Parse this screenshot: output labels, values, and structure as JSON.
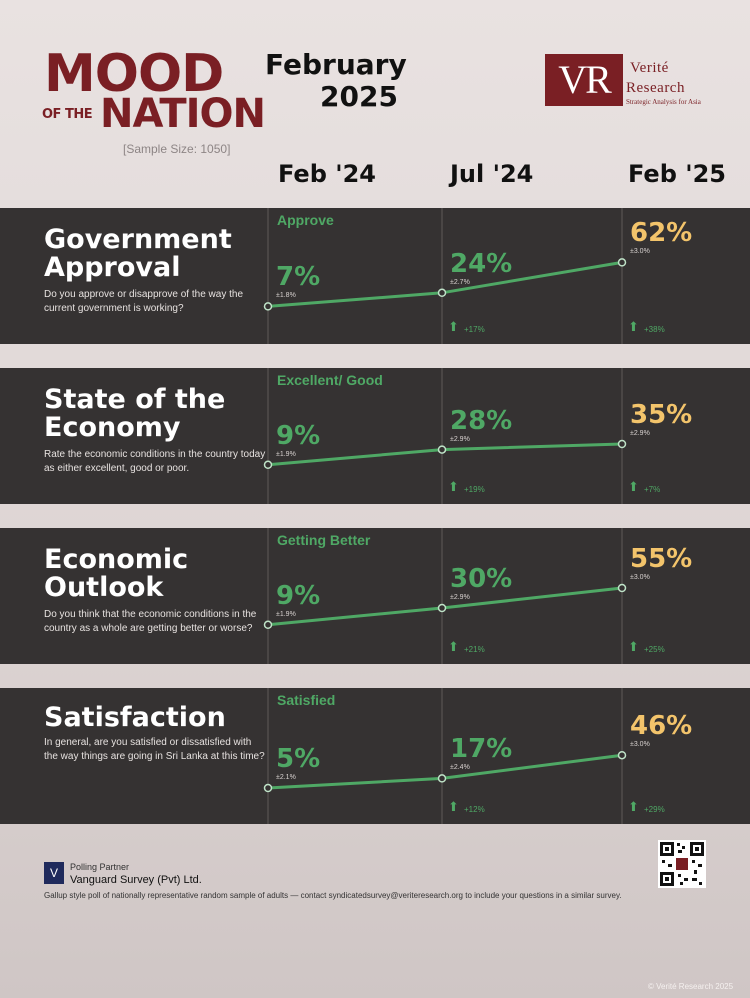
{
  "header": {
    "logo_mood": "MOOD",
    "logo_ofthe": "OF THE",
    "logo_nation": "NATION",
    "sample_size": "[Sample Size: 1050]",
    "month": "February",
    "year": "2025",
    "brand_initials": "VR",
    "brand_name_line1": "Verité",
    "brand_name_line2": "Research",
    "brand_tagline": "Strategic Analysis for Asia"
  },
  "columns": [
    "Feb '24",
    "Jul '24",
    "Feb '25"
  ],
  "colors": {
    "panel_bg": "#353232",
    "green": "#4fa865",
    "highlight": "#f3c46b",
    "brand": "#7a1f24"
  },
  "chart_data": [
    {
      "type": "line",
      "title": "Government Approval",
      "question": "Do you approve or disapprove of the way the current government is working?",
      "response_label": "Approve",
      "x": [
        "Feb '24",
        "Jul '24",
        "Feb '25"
      ],
      "values": [
        7,
        24,
        62
      ],
      "value_labels": [
        "7%",
        "24%",
        "62%"
      ],
      "margins": [
        "±1.8%",
        "±2.7%",
        "±3.0%"
      ],
      "changes": [
        "+17%",
        "+38%"
      ],
      "ylim": [
        0,
        100
      ]
    },
    {
      "type": "line",
      "title": "State of the Economy",
      "question": "Rate the economic conditions in the country today as either excellent, good or poor.",
      "response_label": "Excellent/ Good",
      "x": [
        "Feb '24",
        "Jul '24",
        "Feb '25"
      ],
      "values": [
        9,
        28,
        35
      ],
      "value_labels": [
        "9%",
        "28%",
        "35%"
      ],
      "margins": [
        "±1.9%",
        "±2.9%",
        "±2.9%"
      ],
      "changes": [
        "+19%",
        "+7%"
      ],
      "ylim": [
        0,
        100
      ]
    },
    {
      "type": "line",
      "title": "Economic Outlook",
      "question": "Do you think that the economic conditions in the country as a whole are getting better or worse?",
      "response_label": "Getting Better",
      "x": [
        "Feb '24",
        "Jul '24",
        "Feb '25"
      ],
      "values": [
        9,
        30,
        55
      ],
      "value_labels": [
        "9%",
        "30%",
        "55%"
      ],
      "margins": [
        "±1.9%",
        "±2.9%",
        "±3.0%"
      ],
      "changes": [
        "+21%",
        "+25%"
      ],
      "ylim": [
        0,
        100
      ]
    },
    {
      "type": "line",
      "title": "Satisfaction",
      "question": "In general, are you satisfied or dissatisfied with the way things are going in Sri Lanka at this time?",
      "response_label": "Satisfied",
      "x": [
        "Feb '24",
        "Jul '24",
        "Feb '25"
      ],
      "values": [
        5,
        17,
        46
      ],
      "value_labels": [
        "5%",
        "17%",
        "46%"
      ],
      "margins": [
        "±2.1%",
        "±2.4%",
        "±3.0%"
      ],
      "changes": [
        "+12%",
        "+29%"
      ],
      "ylim": [
        0,
        100
      ]
    }
  ],
  "footer": {
    "partner_label": "Polling Partner",
    "partner_name": "Vanguard Survey (Pvt) Ltd.",
    "note": "Gallup style poll of nationally representative random sample of adults — contact syndicatedsurvey@veriteresearch.org to include your questions in a similar survey.",
    "copyright": "© Verité Research 2025",
    "qr_icon": "qr-code-icon"
  }
}
